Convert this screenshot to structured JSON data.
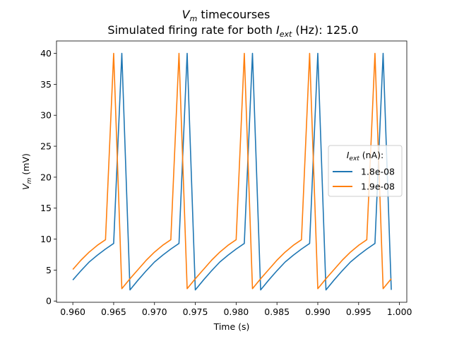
{
  "chart_data": {
    "type": "line",
    "title": {
      "line1_var": "V",
      "line1_sub": "m",
      "line1_rest": " timecourses",
      "line2_pre": "Simulated firing rate for both ",
      "line2_var": "I",
      "line2_sub": "ext",
      "line2_post": " (Hz): 125.0"
    },
    "xlabel": "Time (s)",
    "ylabel": {
      "var": "V",
      "sub": "m",
      "rest": " (mV)"
    },
    "xlim": [
      0.958,
      1.0009
    ],
    "ylim": [
      -0.2,
      42
    ],
    "xticks": [
      0.96,
      0.965,
      0.97,
      0.975,
      0.98,
      0.985,
      0.99,
      0.995,
      1.0
    ],
    "xtick_labels": [
      "0.960",
      "0.965",
      "0.970",
      "0.975",
      "0.980",
      "0.985",
      "0.990",
      "0.995",
      "1.000"
    ],
    "yticks": [
      0,
      5,
      10,
      15,
      20,
      25,
      30,
      35,
      40
    ],
    "ytick_labels": [
      "0",
      "5",
      "10",
      "15",
      "20",
      "25",
      "30",
      "35",
      "40"
    ],
    "grid": false,
    "legend": {
      "title": {
        "var": "I",
        "sub": "ext",
        "rest": " (nA):"
      },
      "placement": "center-right"
    },
    "series": [
      {
        "name": "1.8e-08",
        "color": "#1f77b4",
        "x": [
          0.96,
          0.961,
          0.962,
          0.963,
          0.964,
          0.965,
          0.966,
          0.967,
          0.968,
          0.969,
          0.97,
          0.971,
          0.972,
          0.973,
          0.974,
          0.975,
          0.976,
          0.977,
          0.978,
          0.979,
          0.98,
          0.981,
          0.982,
          0.983,
          0.984,
          0.985,
          0.986,
          0.987,
          0.988,
          0.989,
          0.99,
          0.991,
          0.992,
          0.993,
          0.994,
          0.995,
          0.996,
          0.997,
          0.998,
          0.999
        ],
        "y": [
          3.4,
          4.9,
          6.3,
          7.4,
          8.4,
          9.3,
          40,
          1.8,
          3.4,
          4.9,
          6.3,
          7.4,
          8.4,
          9.3,
          40,
          1.8,
          3.4,
          4.9,
          6.3,
          7.4,
          8.4,
          9.3,
          40,
          1.8,
          3.4,
          4.9,
          6.3,
          7.4,
          8.4,
          9.3,
          40,
          1.8,
          3.4,
          4.9,
          6.3,
          7.4,
          8.4,
          9.3,
          40,
          1.8
        ]
      },
      {
        "name": "1.9e-08",
        "color": "#ff7f0e",
        "x": [
          0.96,
          0.961,
          0.962,
          0.963,
          0.964,
          0.965,
          0.966,
          0.967,
          0.968,
          0.969,
          0.97,
          0.971,
          0.972,
          0.973,
          0.974,
          0.975,
          0.976,
          0.977,
          0.978,
          0.979,
          0.98,
          0.981,
          0.982,
          0.983,
          0.984,
          0.985,
          0.986,
          0.987,
          0.988,
          0.989,
          0.99,
          0.991,
          0.992,
          0.993,
          0.994,
          0.995,
          0.996,
          0.997,
          0.998,
          0.999
        ],
        "y": [
          5.1,
          6.6,
          7.9,
          9.0,
          9.9,
          40,
          2.0,
          3.6,
          5.1,
          6.6,
          7.9,
          9.0,
          9.9,
          40,
          2.0,
          3.6,
          5.1,
          6.6,
          7.9,
          9.0,
          9.9,
          40,
          2.0,
          3.6,
          5.1,
          6.6,
          7.9,
          9.0,
          9.9,
          40,
          2.0,
          3.6,
          5.1,
          6.6,
          7.9,
          9.0,
          9.9,
          40,
          2.0,
          3.6
        ]
      }
    ]
  }
}
